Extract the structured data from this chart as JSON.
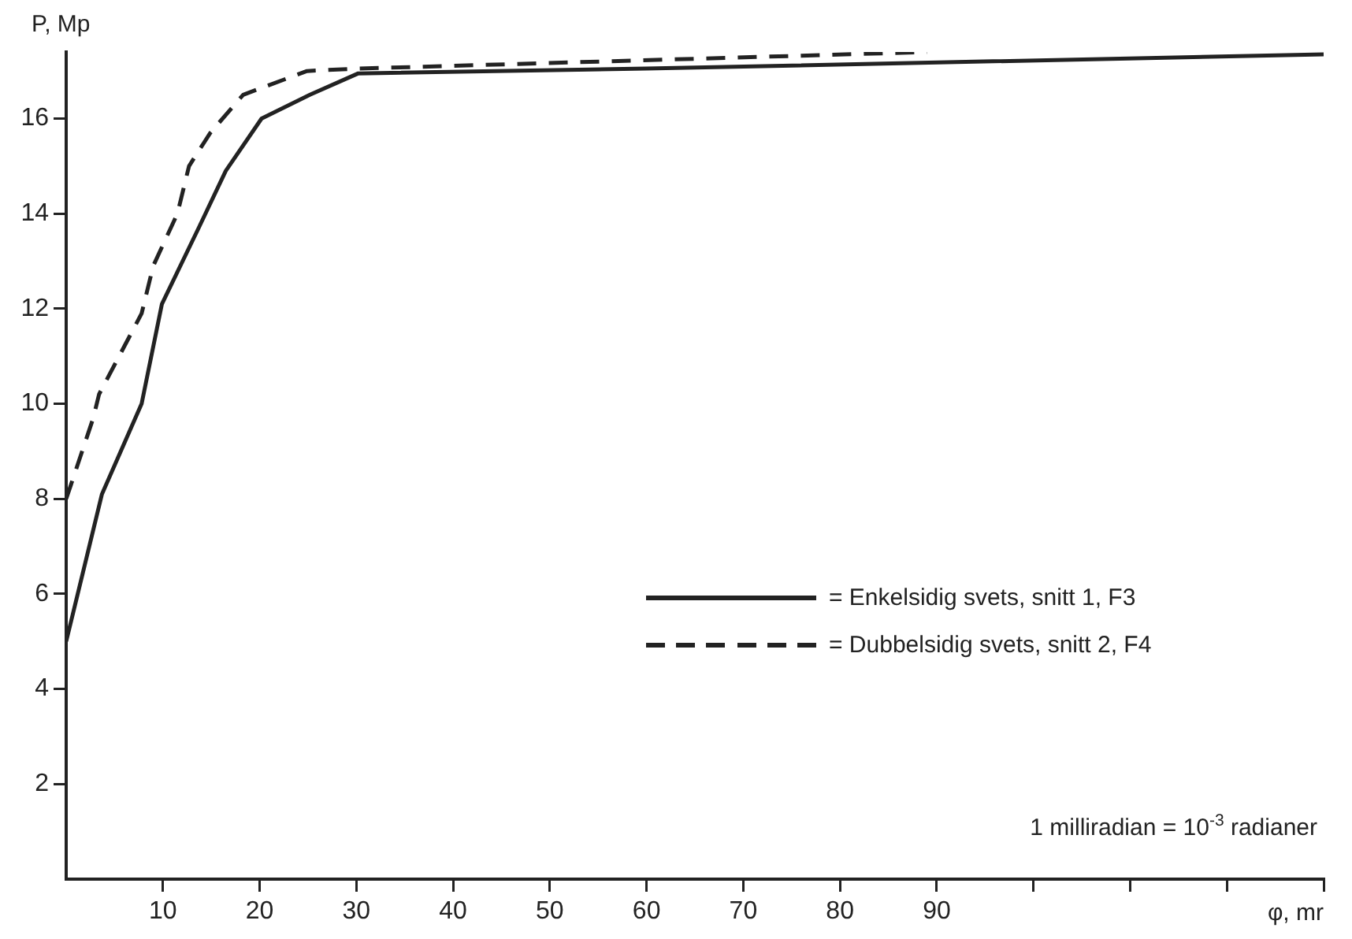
{
  "chart_data": {
    "type": "line",
    "xlabel": "φ, mr",
    "ylabel": "P, Mp",
    "xlim": [
      0,
      130
    ],
    "xticks": [
      10,
      20,
      30,
      40,
      50,
      60,
      70,
      80,
      90,
      {
        "value": 100,
        "label": null
      },
      {
        "value": 110,
        "label": null
      },
      {
        "value": 120,
        "label": null
      },
      {
        "value": 130,
        "label": null
      }
    ],
    "ylim": [
      0,
      17.4
    ],
    "yticks": [
      2,
      4,
      6,
      8,
      10,
      12,
      14,
      16
    ],
    "grid": false,
    "legend": "right",
    "marker": "none",
    "series": [
      {
        "name": "= Enkelsidig svets, snitt 1, F3",
        "color": "#222222",
        "line_style": "solid",
        "x": [
          0,
          3.7,
          7.8,
          9.9,
          13.7,
          16.5,
          20.2,
          25.2,
          30.2,
          60,
          130
        ],
        "values": [
          5,
          8.1,
          10,
          12.1,
          13.7,
          14.9,
          16,
          16.5,
          16.95,
          17.05,
          17.35
        ]
      },
      {
        "name": "= Dubbelsidig svets, snitt 2, F4",
        "color": "#222222",
        "line_style": "dashed",
        "x": [
          0,
          0.5,
          2.8,
          3.4,
          7.8,
          9,
          11.5,
          12.7,
          14.9,
          18.3,
          24.9,
          30,
          89
        ],
        "values": [
          8,
          8.3,
          9.7,
          10.2,
          11.9,
          12.9,
          14,
          15,
          15.7,
          16.5,
          17,
          17.05,
          17.4
        ]
      }
    ],
    "annotations": [
      "1 milliradian = 10$^{-3}$ radianer"
    ]
  }
}
